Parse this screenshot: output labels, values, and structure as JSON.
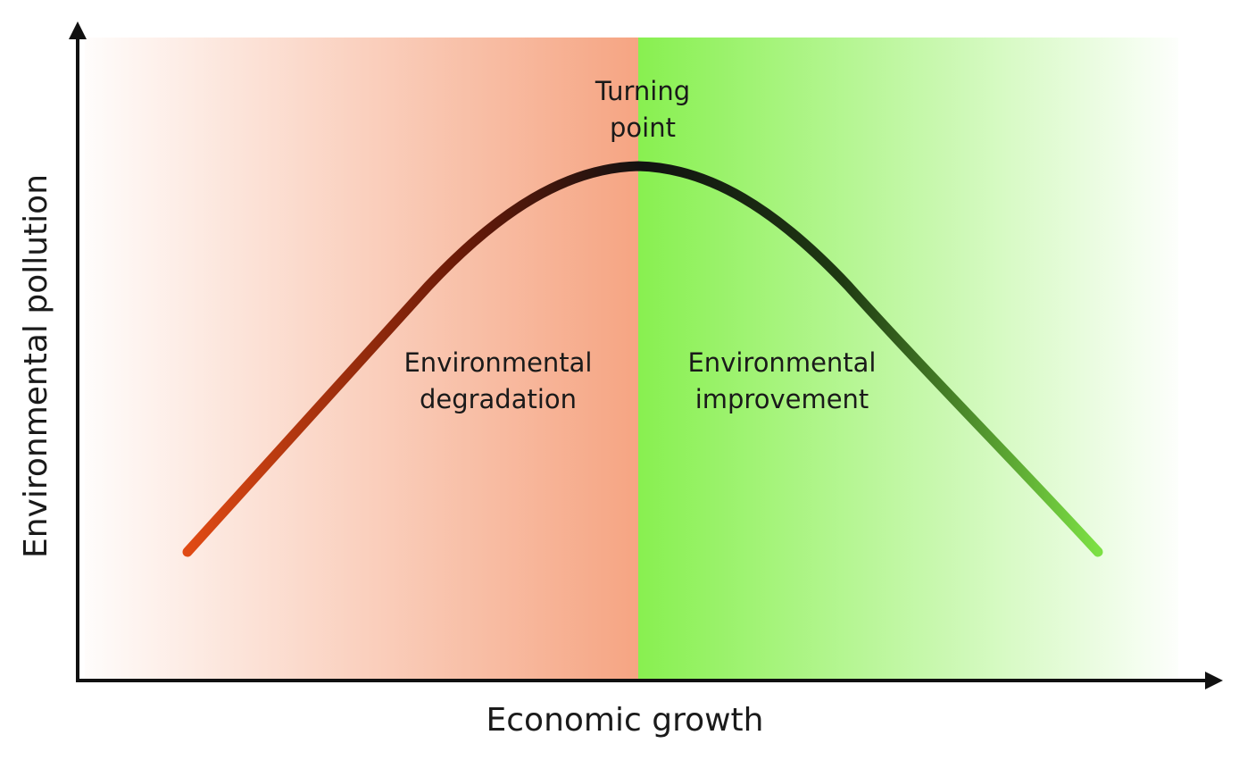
{
  "diagram": {
    "axes": {
      "y_label": "Environmental pollution",
      "x_label": "Economic growth"
    },
    "peak_label": {
      "line1": "Turning",
      "line2": "point"
    },
    "left_region": {
      "line1": "Environmental",
      "line2": "degradation",
      "background_color": "#f5a07c"
    },
    "right_region": {
      "line1": "Environmental",
      "line2": "improvement",
      "background_color": "#88f050"
    },
    "curve": {
      "shape": "inverted-U",
      "start_color": "#e04a14",
      "peak_color": "#111111",
      "end_color": "#7ce044"
    }
  }
}
